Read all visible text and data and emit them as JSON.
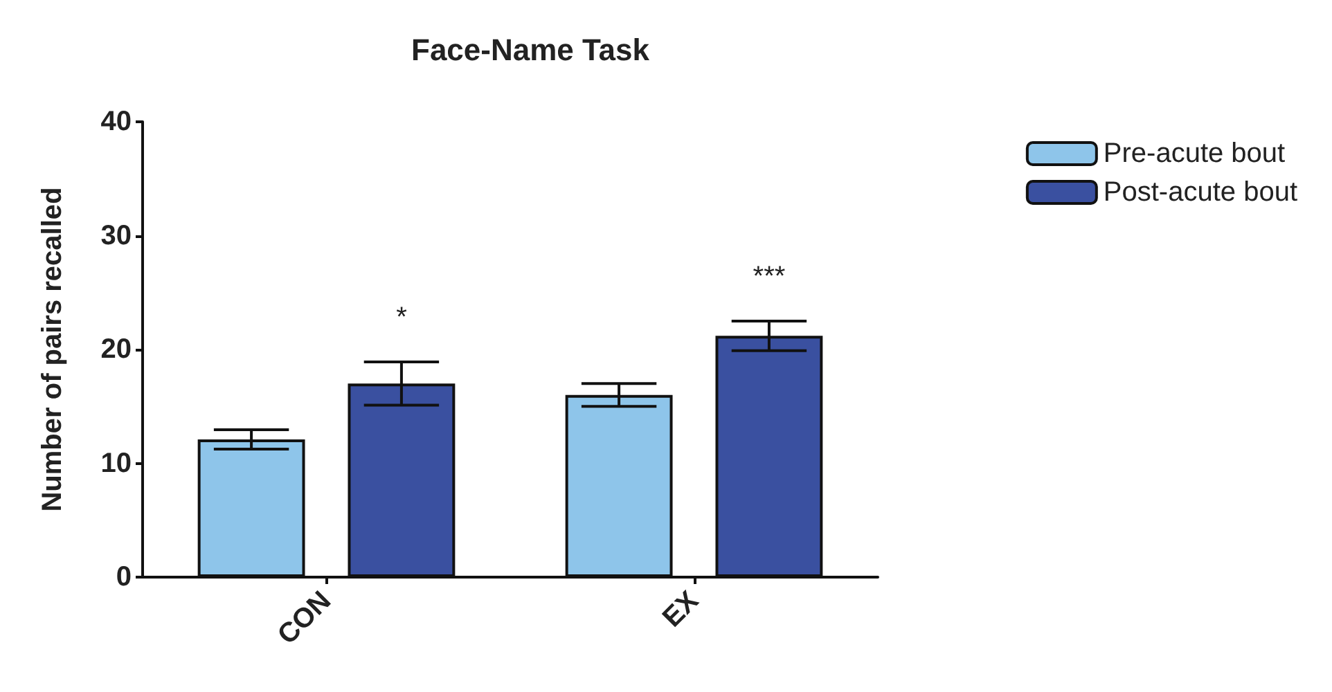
{
  "chart_data": {
    "type": "bar",
    "title": "Face-Name Task",
    "ylabel": "Number of pairs recalled",
    "categories": [
      "CON",
      "EX"
    ],
    "series": [
      {
        "name": "Pre-acute bout",
        "color": "#8ec5ea",
        "values": [
          12.1,
          16.0
        ],
        "errors": [
          0.85,
          1.0
        ]
      },
      {
        "name": "Post-acute bout",
        "color": "#3a50a0",
        "values": [
          17.0,
          21.2
        ],
        "errors": [
          1.9,
          1.3
        ]
      }
    ],
    "annotations": [
      "*",
      "***"
    ],
    "ylim": [
      0,
      40
    ],
    "yticks": [
      0,
      10,
      20,
      30,
      40
    ],
    "grid": false,
    "legend": "top right"
  }
}
